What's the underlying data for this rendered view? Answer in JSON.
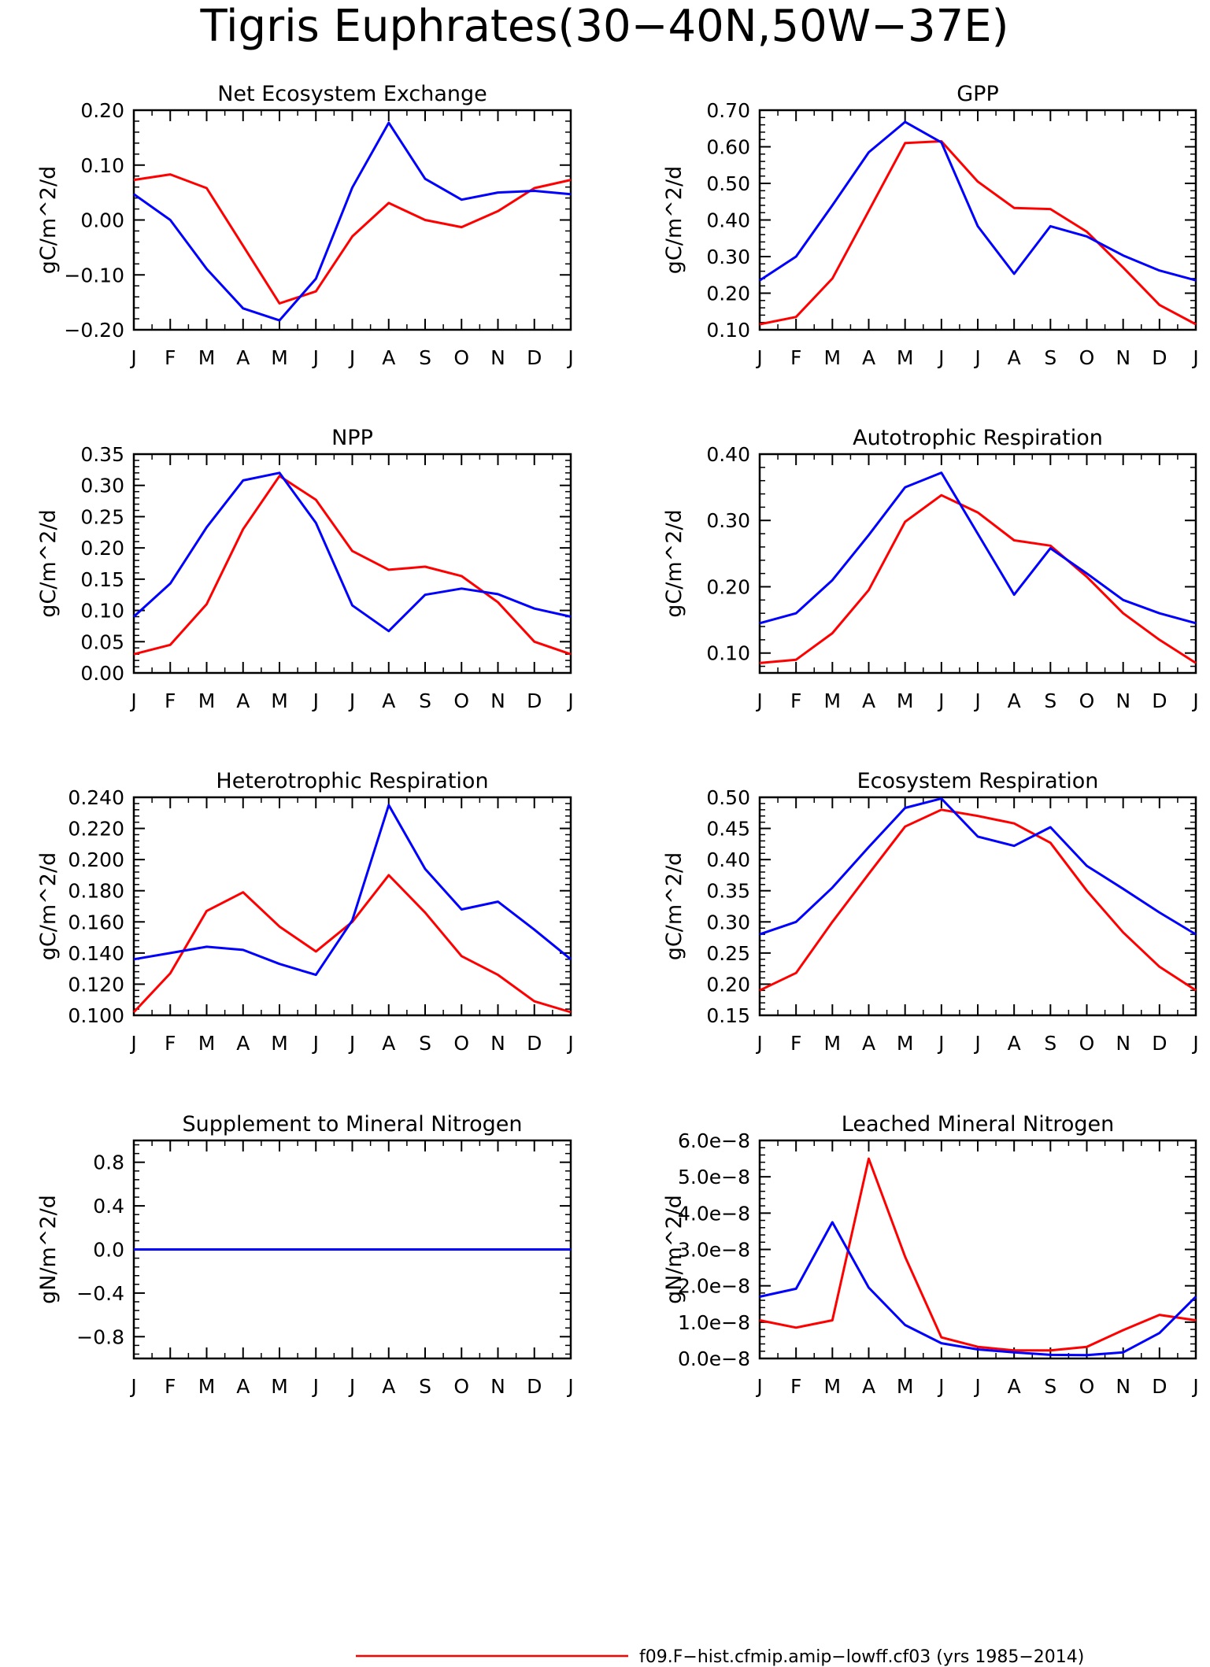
{
  "figure": {
    "title": "Tigris Euphrates(30−40N,50W−37E)",
    "legend_text": "f09.F−hist.cfmip.amip−lowff.cf03 (yrs 1985−2014)",
    "legend_color": "#ff0000"
  },
  "months": [
    "J",
    "F",
    "M",
    "A",
    "M",
    "J",
    "J",
    "A",
    "S",
    "O",
    "N",
    "D",
    "J"
  ],
  "chart_data": [
    {
      "type": "line",
      "title": "Net Ecosystem Exchange",
      "ylabel": "gC/m^2/d",
      "ylim": [
        -0.2,
        0.2
      ],
      "yticks": [
        -0.2,
        -0.1,
        0.0,
        0.1,
        0.2
      ],
      "ytick_labels": [
        "−0.20",
        "−0.10",
        "0.00",
        "0.10",
        "0.20"
      ],
      "series": [
        {
          "color": "#ff0000",
          "values": [
            0.073,
            0.083,
            0.058,
            -0.047,
            -0.152,
            -0.13,
            -0.03,
            0.031,
            0.0,
            -0.013,
            0.016,
            0.058,
            0.073
          ]
        },
        {
          "color": "#0000ff",
          "values": [
            0.047,
            0.0,
            -0.089,
            -0.161,
            -0.183,
            -0.107,
            0.059,
            0.177,
            0.075,
            0.037,
            0.05,
            0.053,
            0.047
          ]
        }
      ]
    },
    {
      "type": "line",
      "title": "GPP",
      "ylabel": "gC/m^2/d",
      "ylim": [
        0.1,
        0.7
      ],
      "yticks": [
        0.1,
        0.2,
        0.3,
        0.4,
        0.5,
        0.6,
        0.7
      ],
      "ytick_labels": [
        "0.10",
        "0.20",
        "0.30",
        "0.40",
        "0.50",
        "0.60",
        "0.70"
      ],
      "series": [
        {
          "color": "#ff0000",
          "values": [
            0.115,
            0.135,
            0.24,
            0.425,
            0.61,
            0.615,
            0.505,
            0.433,
            0.43,
            0.368,
            0.27,
            0.168,
            0.115
          ]
        },
        {
          "color": "#0000ff",
          "values": [
            0.235,
            0.3,
            0.44,
            0.585,
            0.668,
            0.612,
            0.383,
            0.253,
            0.383,
            0.355,
            0.303,
            0.262,
            0.235
          ]
        }
      ]
    },
    {
      "type": "line",
      "title": "NPP",
      "ylabel": "gC/m^2/d",
      "ylim": [
        0.0,
        0.35
      ],
      "yticks": [
        0.0,
        0.05,
        0.1,
        0.15,
        0.2,
        0.25,
        0.3,
        0.35
      ],
      "ytick_labels": [
        "0.00",
        "0.05",
        "0.10",
        "0.15",
        "0.20",
        "0.25",
        "0.30",
        "0.35"
      ],
      "series": [
        {
          "color": "#ff0000",
          "values": [
            0.03,
            0.045,
            0.11,
            0.23,
            0.315,
            0.277,
            0.195,
            0.165,
            0.17,
            0.155,
            0.113,
            0.05,
            0.03
          ]
        },
        {
          "color": "#0000ff",
          "values": [
            0.09,
            0.143,
            0.233,
            0.308,
            0.32,
            0.24,
            0.108,
            0.067,
            0.125,
            0.135,
            0.126,
            0.103,
            0.09
          ]
        }
      ]
    },
    {
      "type": "line",
      "title": "Autotrophic Respiration",
      "ylabel": "gC/m^2/d",
      "ylim": [
        0.07,
        0.4
      ],
      "yticks": [
        0.1,
        0.2,
        0.3,
        0.4
      ],
      "ytick_labels": [
        "0.10",
        "0.20",
        "0.30",
        "0.40"
      ],
      "series": [
        {
          "color": "#ff0000",
          "values": [
            0.085,
            0.09,
            0.13,
            0.195,
            0.298,
            0.338,
            0.312,
            0.27,
            0.262,
            0.215,
            0.16,
            0.12,
            0.085
          ]
        },
        {
          "color": "#0000ff",
          "values": [
            0.145,
            0.16,
            0.21,
            0.278,
            0.35,
            0.372,
            0.28,
            0.188,
            0.258,
            0.22,
            0.18,
            0.16,
            0.145
          ]
        }
      ]
    },
    {
      "type": "line",
      "title": "Heterotrophic Respiration",
      "ylabel": "gC/m^2/d",
      "ylim": [
        0.1,
        0.24
      ],
      "yticks": [
        0.1,
        0.12,
        0.14,
        0.16,
        0.18,
        0.2,
        0.22,
        0.24
      ],
      "ytick_labels": [
        "0.100",
        "0.120",
        "0.140",
        "0.160",
        "0.180",
        "0.200",
        "0.220",
        "0.240"
      ],
      "series": [
        {
          "color": "#ff0000",
          "values": [
            0.102,
            0.127,
            0.167,
            0.179,
            0.157,
            0.141,
            0.16,
            0.19,
            0.166,
            0.138,
            0.126,
            0.109,
            0.102
          ]
        },
        {
          "color": "#0000ff",
          "values": [
            0.136,
            0.14,
            0.144,
            0.142,
            0.133,
            0.126,
            0.161,
            0.235,
            0.194,
            0.168,
            0.173,
            0.155,
            0.136
          ]
        }
      ]
    },
    {
      "type": "line",
      "title": "Ecosystem Respiration",
      "ylabel": "gC/m^2/d",
      "ylim": [
        0.15,
        0.5
      ],
      "yticks": [
        0.15,
        0.2,
        0.25,
        0.3,
        0.35,
        0.4,
        0.45,
        0.5
      ],
      "ytick_labels": [
        "0.15",
        "0.20",
        "0.25",
        "0.30",
        "0.35",
        "0.40",
        "0.45",
        "0.50"
      ],
      "series": [
        {
          "color": "#ff0000",
          "values": [
            0.19,
            0.218,
            0.3,
            0.377,
            0.453,
            0.48,
            0.47,
            0.458,
            0.427,
            0.35,
            0.283,
            0.228,
            0.19
          ]
        },
        {
          "color": "#0000ff",
          "values": [
            0.28,
            0.3,
            0.355,
            0.42,
            0.483,
            0.498,
            0.437,
            0.422,
            0.452,
            0.39,
            0.353,
            0.315,
            0.28
          ]
        }
      ]
    },
    {
      "type": "line",
      "title": "Supplement to Mineral Nitrogen",
      "ylabel": "gN/m^2/d",
      "ylim": [
        -1.0,
        1.0
      ],
      "yticks": [
        -0.8,
        -0.4,
        0.0,
        0.4,
        0.8
      ],
      "ytick_labels": [
        "−0.8",
        "−0.4",
        "0.0",
        "0.4",
        "0.8"
      ],
      "series": [
        {
          "color": "#ff0000",
          "values": [
            0,
            0,
            0,
            0,
            0,
            0,
            0,
            0,
            0,
            0,
            0,
            0,
            0
          ]
        },
        {
          "color": "#0000ff",
          "values": [
            0,
            0,
            0,
            0,
            0,
            0,
            0,
            0,
            0,
            0,
            0,
            0,
            0
          ]
        }
      ]
    },
    {
      "type": "line",
      "title": "Leached Mineral Nitrogen",
      "ylabel": "gN/m^2/d",
      "ylim": [
        0.0,
        6e-08
      ],
      "yticks": [
        0.0,
        1e-08,
        2e-08,
        3e-08,
        4e-08,
        5e-08,
        6e-08
      ],
      "ytick_labels": [
        "0.0e−8",
        "1.0e−8",
        "2.0e−8",
        "3.0e−8",
        "4.0e−8",
        "5.0e−8",
        "6.0e−8"
      ],
      "series": [
        {
          "color": "#ff0000",
          "values": [
            1.05e-08,
            8.5e-09,
            1.05e-08,
            5.5e-08,
            2.8e-08,
            5.8e-09,
            3.2e-09,
            2.2e-09,
            2.2e-09,
            3.2e-09,
            7.8e-09,
            1.2e-08,
            1.05e-08
          ]
        },
        {
          "color": "#0000ff",
          "values": [
            1.7e-08,
            1.92e-08,
            3.75e-08,
            1.95e-08,
            9.2e-09,
            4.2e-09,
            2.5e-09,
            1.7e-09,
            1e-09,
            9e-10,
            1.7e-09,
            7e-09,
            1.7e-08
          ]
        }
      ]
    }
  ]
}
